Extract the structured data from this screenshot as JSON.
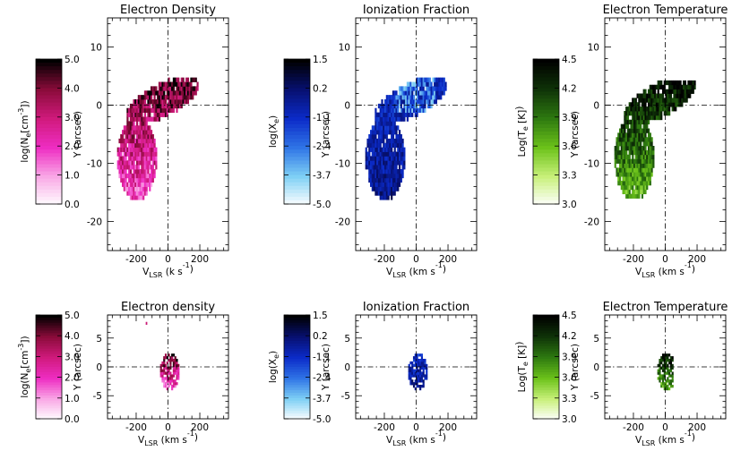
{
  "chart_data": [
    {
      "type": "heatmap",
      "title": "Electron Density",
      "xlabel_main": "V",
      "xlabel_sub": "LSR",
      "xlabel_unit": "(k   s",
      "xlabel_exp": "-1",
      "xlabel_close": ")",
      "ylabel": "Y (arcsec)",
      "xlim": [
        -380,
        380
      ],
      "ylim": [
        -25,
        15
      ],
      "xticks": [
        -200,
        0,
        200
      ],
      "yticks": [
        10,
        0,
        -10,
        -20
      ],
      "colorbar": {
        "label": "log(N",
        "label_sub": "e",
        "label_rest": "[cm",
        "label_exp": "-3",
        "label_end": "])",
        "range": [
          0.0,
          5.0
        ],
        "ticks": [
          "5.0",
          "4.0",
          "3.0",
          "2.0",
          "1.0",
          "0.0"
        ],
        "colormap": [
          "#ffffff",
          "#f9a8e6",
          "#ee2dc2",
          "#d01a7c",
          "#8a0b3a",
          "#000000"
        ]
      },
      "data_extent": {
        "description": "emission region",
        "x_range": [
          -330,
          200
        ],
        "y_range": [
          -17,
          4
        ],
        "value_range": [
          1.0,
          5.0
        ]
      }
    },
    {
      "type": "heatmap",
      "title": "Ionization Fraction",
      "xlabel_main": "V",
      "xlabel_sub": "LSR",
      "xlabel_unit": "(km s",
      "xlabel_exp": "-1",
      "xlabel_close": ")",
      "ylabel": "Y (arcsec)",
      "xlim": [
        -380,
        380
      ],
      "ylim": [
        -25,
        15
      ],
      "xticks": [
        -200,
        0,
        200
      ],
      "yticks": [
        10,
        0,
        -10,
        -20
      ],
      "colorbar": {
        "label": "log(X",
        "label_sub": "e",
        "label_rest": "",
        "label_exp": "",
        "label_end": ")",
        "range": [
          -5.0,
          1.5
        ],
        "ticks": [
          "1.5",
          "0.2",
          "-1.1",
          "-2.4",
          "-3.7",
          "-5.0"
        ],
        "colormap": [
          "#ffffff",
          "#7fd0f5",
          "#2f74e6",
          "#0b2bc8",
          "#071070",
          "#000000"
        ]
      },
      "data_extent": {
        "description": "emission region",
        "x_range": [
          -320,
          190
        ],
        "y_range": [
          -17,
          5
        ],
        "value_range": [
          -4.0,
          1.0
        ]
      }
    },
    {
      "type": "heatmap",
      "title": "Electron Temperature",
      "xlabel_main": "V",
      "xlabel_sub": "LSR",
      "xlabel_unit": "(km s",
      "xlabel_exp": "-1",
      "xlabel_close": ")",
      "ylabel": "Y (arcsec)",
      "xlim": [
        -380,
        380
      ],
      "ylim": [
        -25,
        15
      ],
      "xticks": [
        -200,
        0,
        200
      ],
      "yticks": [
        10,
        0,
        -10,
        -20
      ],
      "colorbar": {
        "label": "Log(T",
        "label_sub": "e",
        "label_rest": " [K]",
        "label_exp": "",
        "label_end": ")",
        "range": [
          3.0,
          4.5
        ],
        "ticks": [
          "4.5",
          "4.2",
          "3.9",
          "3.6",
          "3.3",
          "3.0"
        ],
        "colormap": [
          "#ffffff",
          "#c8f07a",
          "#6cc21a",
          "#2e7a10",
          "#0f3308",
          "#000000"
        ]
      },
      "data_extent": {
        "description": "emission region",
        "x_range": [
          -330,
          200
        ],
        "y_range": [
          -16,
          4
        ],
        "value_range": [
          3.3,
          4.5
        ]
      }
    },
    {
      "type": "heatmap",
      "title": "Electron density",
      "xlabel_main": "V",
      "xlabel_sub": "LSR",
      "xlabel_unit": "(km s",
      "xlabel_exp": "-1",
      "xlabel_close": ")",
      "ylabel": "Y (arcsec)",
      "xlim": [
        -380,
        380
      ],
      "ylim": [
        -9,
        9
      ],
      "xticks": [
        -200,
        0,
        200
      ],
      "yticks": [
        5,
        0,
        -5
      ],
      "colorbar": {
        "label": "log(N",
        "label_sub": "e",
        "label_rest": "[cm",
        "label_exp": "-3",
        "label_end": "])",
        "range": [
          0.0,
          5.0
        ],
        "ticks": [
          "5.0",
          "4.0",
          "3.0",
          "2.0",
          "1.0",
          "0.0"
        ],
        "colormap": [
          "#ffffff",
          "#f9a8e6",
          "#ee2dc2",
          "#d01a7c",
          "#8a0b3a",
          "#000000"
        ]
      },
      "data_extent": {
        "description": "compact emission",
        "x_range": [
          -60,
          70
        ],
        "y_range": [
          -4,
          2
        ],
        "value_range": [
          1.5,
          4.8
        ]
      }
    },
    {
      "type": "heatmap",
      "title": "Ionization Fraction",
      "xlabel_main": "V",
      "xlabel_sub": "LSR",
      "xlabel_unit": "(km s",
      "xlabel_exp": "-1",
      "xlabel_close": ")",
      "ylabel": "Y (arcsec)",
      "xlim": [
        -380,
        380
      ],
      "ylim": [
        -9,
        9
      ],
      "xticks": [
        -200,
        0,
        200
      ],
      "yticks": [
        5,
        0,
        -5
      ],
      "colorbar": {
        "label": "log(X",
        "label_sub": "e",
        "label_rest": "",
        "label_exp": "",
        "label_end": ")",
        "range": [
          -5.0,
          1.5
        ],
        "ticks": [
          "1.5",
          "0.2",
          "-1.1",
          "-2.4",
          "-3.7",
          "-5.0"
        ],
        "colormap": [
          "#ffffff",
          "#7fd0f5",
          "#2f74e6",
          "#0b2bc8",
          "#071070",
          "#000000"
        ]
      },
      "data_extent": {
        "description": "compact emission",
        "x_range": [
          -60,
          70
        ],
        "y_range": [
          -4,
          2
        ],
        "value_range": [
          -3.0,
          1.0
        ]
      }
    },
    {
      "type": "heatmap",
      "title": "Electron Temperature",
      "xlabel_main": "V",
      "xlabel_sub": "LSR",
      "xlabel_unit": "(km s",
      "xlabel_exp": "-1",
      "xlabel_close": ")",
      "ylabel": "Y (arcsec)",
      "xlim": [
        -380,
        380
      ],
      "ylim": [
        -9,
        9
      ],
      "xticks": [
        -200,
        0,
        200
      ],
      "yticks": [
        5,
        0,
        -5
      ],
      "colorbar": {
        "label": "Log(T",
        "label_sub": "e",
        "label_rest": " [K]",
        "label_exp": "",
        "label_end": ")",
        "range": [
          3.0,
          4.5
        ],
        "ticks": [
          "4.5",
          "4.2",
          "3.9",
          "3.6",
          "3.3",
          "3.0"
        ],
        "colormap": [
          "#ffffff",
          "#c8f07a",
          "#6cc21a",
          "#2e7a10",
          "#0f3308",
          "#000000"
        ]
      },
      "data_extent": {
        "description": "compact emission",
        "x_range": [
          -50,
          40
        ],
        "y_range": [
          -4,
          2
        ],
        "value_range": [
          3.3,
          4.5
        ]
      }
    }
  ]
}
